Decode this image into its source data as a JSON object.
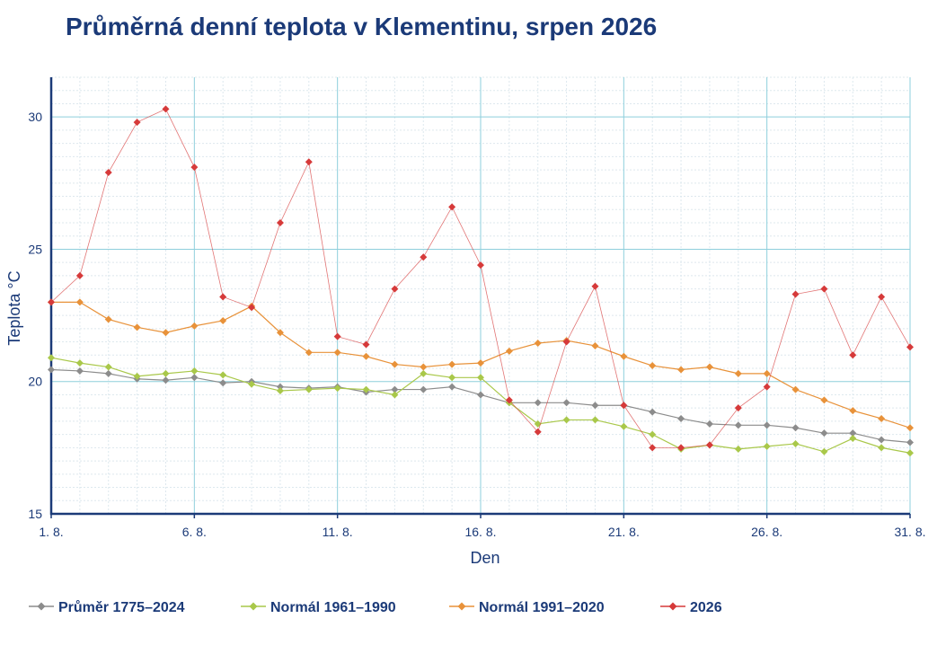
{
  "title": "Průměrná denní teplota v Klementinu, srpen 2026",
  "chart_data": {
    "type": "line",
    "title": "Průměrná denní teplota v Klementinu, srpen 2026",
    "xlabel": "Den",
    "ylabel": "Teplota °C",
    "xlim": [
      1,
      31
    ],
    "ylim": [
      15,
      31.5
    ],
    "grid": true,
    "legend_position": "bottom",
    "x": [
      1,
      2,
      3,
      4,
      5,
      6,
      7,
      8,
      9,
      10,
      11,
      12,
      13,
      14,
      15,
      16,
      17,
      18,
      19,
      20,
      21,
      22,
      23,
      24,
      25,
      26,
      27,
      28,
      29,
      30,
      31
    ],
    "x_ticks": [
      {
        "value": 1,
        "label": "1. 8."
      },
      {
        "value": 6,
        "label": "6. 8."
      },
      {
        "value": 11,
        "label": "11. 8."
      },
      {
        "value": 16,
        "label": "16. 8."
      },
      {
        "value": 21,
        "label": "21. 8."
      },
      {
        "value": 26,
        "label": "26. 8."
      },
      {
        "value": 31,
        "label": "31. 8."
      }
    ],
    "y_ticks": [
      {
        "value": 15,
        "label": "15"
      },
      {
        "value": 20,
        "label": "20"
      },
      {
        "value": 25,
        "label": "25"
      },
      {
        "value": 30,
        "label": "30"
      }
    ],
    "series": [
      {
        "name": "Průměr 1775–2024",
        "color": "#8c8c8c",
        "values": [
          20.45,
          20.4,
          20.3,
          20.1,
          20.05,
          20.15,
          19.95,
          20.0,
          19.8,
          19.75,
          19.8,
          19.6,
          19.7,
          19.7,
          19.8,
          19.5,
          19.2,
          19.2,
          19.2,
          19.1,
          19.1,
          18.85,
          18.6,
          18.4,
          18.35,
          18.35,
          18.25,
          18.05,
          18.05,
          17.8,
          17.7
        ]
      },
      {
        "name": "Normál 1961–1990",
        "color": "#a9c84a",
        "values": [
          20.9,
          20.7,
          20.55,
          20.2,
          20.3,
          20.4,
          20.25,
          19.9,
          19.65,
          19.7,
          19.75,
          19.7,
          19.5,
          20.3,
          20.15,
          20.15,
          19.2,
          18.4,
          18.55,
          18.55,
          18.3,
          18.0,
          17.45,
          17.6,
          17.45,
          17.55,
          17.65,
          17.35,
          17.85,
          17.5,
          17.3
        ]
      },
      {
        "name": "Normál 1991–2020",
        "color": "#e8923a",
        "values": [
          23.0,
          23.0,
          22.35,
          22.05,
          21.85,
          22.1,
          22.3,
          22.85,
          21.85,
          21.1,
          21.1,
          20.95,
          20.65,
          20.55,
          20.65,
          20.7,
          21.15,
          21.45,
          21.55,
          21.35,
          20.95,
          20.6,
          20.45,
          20.55,
          20.3,
          20.3,
          19.7,
          19.3,
          18.9,
          18.6,
          18.25
        ]
      },
      {
        "name": "2026",
        "color": "#d63a3a",
        "values": [
          23.0,
          24.0,
          27.9,
          29.8,
          30.3,
          28.1,
          23.2,
          22.8,
          26.0,
          28.3,
          21.7,
          21.4,
          23.5,
          24.7,
          26.6,
          24.4,
          19.3,
          18.1,
          21.5,
          23.6,
          19.1,
          17.5,
          17.5,
          17.6,
          19.0,
          19.8,
          23.3,
          23.5,
          21.0,
          23.2,
          21.3
        ]
      }
    ]
  }
}
